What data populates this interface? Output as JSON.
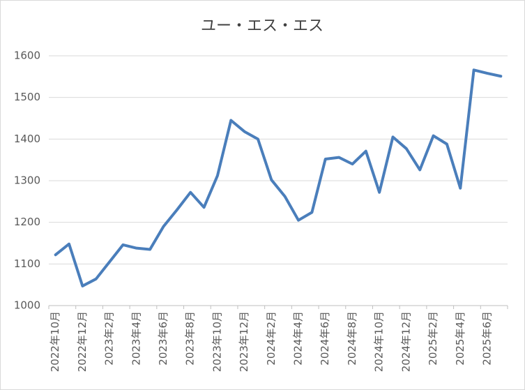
{
  "chart_data": {
    "type": "line",
    "title": "ユー・エス・エス",
    "categories": [
      "2022年10月",
      null,
      "2022年12月",
      null,
      "2023年2月",
      null,
      "2023年4月",
      null,
      "2023年6月",
      null,
      "2023年8月",
      null,
      "2023年10月",
      null,
      "2023年12月",
      null,
      "2024年2月",
      null,
      "2024年4月",
      null,
      "2024年6月",
      null,
      "2024年8月",
      null,
      "2024年10月",
      null,
      "2024年12月",
      null,
      "2025年2月",
      null,
      "2025年4月",
      null,
      "2025年6月",
      null
    ],
    "series": [
      {
        "name": "ユー・エス・エス",
        "color": "#4a7ebb",
        "values": [
          1122,
          1148,
          1047,
          1064,
          1105,
          1146,
          1138,
          1135,
          1190,
          1230,
          1272,
          1236,
          1312,
          1445,
          1418,
          1400,
          1302,
          1262,
          1205,
          1224,
          1352,
          1356,
          1340,
          1371,
          1272,
          1405,
          1377,
          1326,
          1408,
          1388,
          1282,
          1566,
          1558,
          1551
        ]
      }
    ],
    "ylim": [
      1000,
      1600
    ],
    "yticks": [
      1000,
      1100,
      1200,
      1300,
      1400,
      1500,
      1600
    ],
    "grid": true
  }
}
